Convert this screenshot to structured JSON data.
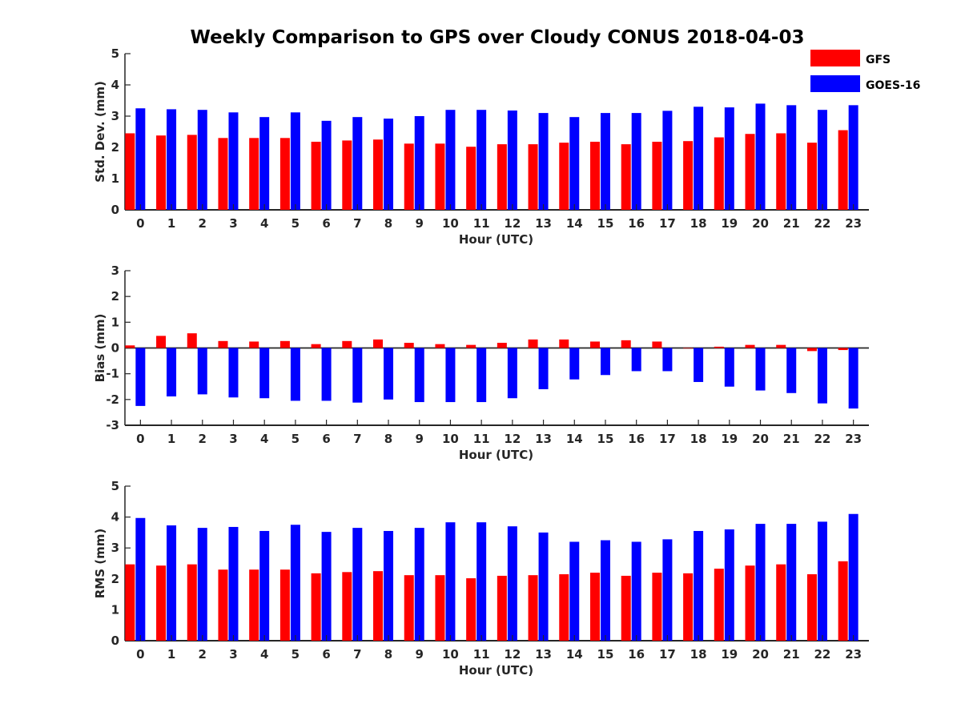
{
  "figure": {
    "title": "Weekly Comparison to GPS over Cloudy CONUS 2018-04-03",
    "colors": {
      "GFS": "#ff0000",
      "GOES-16": "#0000ff"
    }
  },
  "legend": {
    "placement": "top-right",
    "entries": [
      "GFS",
      "GOES-16"
    ]
  },
  "chart_data": [
    {
      "type": "bar",
      "categories": [
        "0",
        "1",
        "2",
        "3",
        "4",
        "5",
        "6",
        "7",
        "8",
        "9",
        "10",
        "11",
        "12",
        "13",
        "14",
        "15",
        "16",
        "17",
        "18",
        "19",
        "20",
        "21",
        "22",
        "23"
      ],
      "xlabel": "Hour (UTC)",
      "ylabel": "Std. Dev. (mm)",
      "ylim": [
        0,
        5
      ],
      "yticks": [
        "0",
        "1",
        "2",
        "3",
        "4",
        "5"
      ],
      "series": [
        {
          "name": "GFS",
          "values": [
            2.45,
            2.38,
            2.4,
            2.3,
            2.3,
            2.3,
            2.18,
            2.22,
            2.25,
            2.12,
            2.12,
            2.02,
            2.1,
            2.1,
            2.15,
            2.18,
            2.1,
            2.18,
            2.2,
            2.32,
            2.43,
            2.45,
            2.15,
            2.55
          ]
        },
        {
          "name": "GOES-16",
          "values": [
            3.25,
            3.22,
            3.2,
            3.12,
            2.97,
            3.12,
            2.85,
            2.97,
            2.92,
            3.0,
            3.2,
            3.2,
            3.18,
            3.1,
            2.97,
            3.1,
            3.1,
            3.17,
            3.3,
            3.28,
            3.4,
            3.35,
            3.2,
            3.35
          ]
        }
      ]
    },
    {
      "type": "bar",
      "categories": [
        "0",
        "1",
        "2",
        "3",
        "4",
        "5",
        "6",
        "7",
        "8",
        "9",
        "10",
        "11",
        "12",
        "13",
        "14",
        "15",
        "16",
        "17",
        "18",
        "19",
        "20",
        "21",
        "22",
        "23"
      ],
      "xlabel": "Hour (UTC)",
      "ylabel": "Bias (mm)",
      "ylim": [
        -3,
        3
      ],
      "yticks": [
        "-3",
        "-2",
        "-1",
        "0",
        "1",
        "2",
        "3"
      ],
      "series": [
        {
          "name": "GFS",
          "values": [
            0.1,
            0.47,
            0.57,
            0.27,
            0.25,
            0.27,
            0.15,
            0.27,
            0.33,
            0.2,
            0.15,
            0.12,
            0.2,
            0.33,
            0.33,
            0.25,
            0.3,
            0.25,
            0.0,
            0.05,
            0.12,
            0.12,
            -0.12,
            -0.08
          ]
        },
        {
          "name": "GOES-16",
          "values": [
            -2.25,
            -1.88,
            -1.8,
            -1.92,
            -1.95,
            -2.05,
            -2.05,
            -2.12,
            -2.0,
            -2.1,
            -2.1,
            -2.1,
            -1.95,
            -1.6,
            -1.22,
            -1.05,
            -0.9,
            -0.9,
            -1.32,
            -1.5,
            -1.65,
            -1.75,
            -2.15,
            -2.35
          ]
        }
      ]
    },
    {
      "type": "bar",
      "categories": [
        "0",
        "1",
        "2",
        "3",
        "4",
        "5",
        "6",
        "7",
        "8",
        "9",
        "10",
        "11",
        "12",
        "13",
        "14",
        "15",
        "16",
        "17",
        "18",
        "19",
        "20",
        "21",
        "22",
        "23"
      ],
      "xlabel": "Hour (UTC)",
      "ylabel": "RMS (mm)",
      "ylim": [
        0,
        5
      ],
      "yticks": [
        "0",
        "1",
        "2",
        "3",
        "4",
        "5"
      ],
      "series": [
        {
          "name": "GFS",
          "values": [
            2.47,
            2.43,
            2.47,
            2.3,
            2.3,
            2.3,
            2.18,
            2.22,
            2.25,
            2.12,
            2.12,
            2.02,
            2.1,
            2.12,
            2.15,
            2.2,
            2.1,
            2.2,
            2.18,
            2.33,
            2.43,
            2.47,
            2.15,
            2.57
          ]
        },
        {
          "name": "GOES-16",
          "values": [
            3.97,
            3.73,
            3.65,
            3.68,
            3.55,
            3.75,
            3.52,
            3.65,
            3.55,
            3.65,
            3.83,
            3.83,
            3.7,
            3.5,
            3.2,
            3.25,
            3.2,
            3.28,
            3.55,
            3.6,
            3.78,
            3.78,
            3.85,
            4.1
          ]
        }
      ]
    }
  ]
}
